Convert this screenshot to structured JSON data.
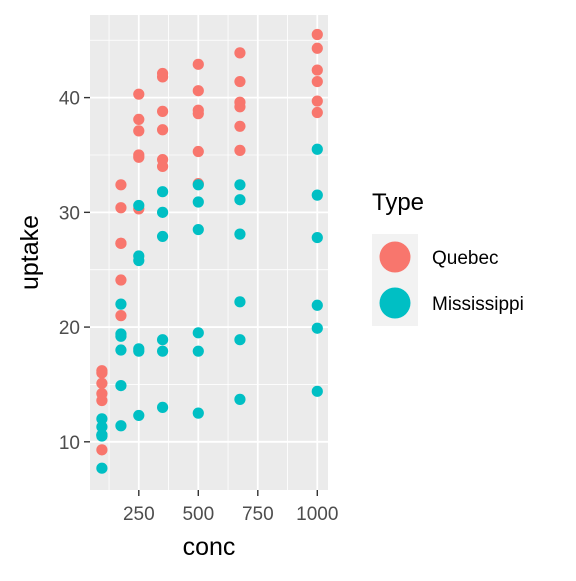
{
  "chart_data": {
    "type": "scatter",
    "title": "",
    "xlabel": "conc",
    "ylabel": "uptake",
    "xlim": [
      45,
      1045
    ],
    "ylim": [
      5.8,
      47.2
    ],
    "x_ticks": [
      250,
      500,
      750,
      1000
    ],
    "x_tick_labels": [
      "250",
      "500",
      "750",
      "1000"
    ],
    "y_ticks": [
      10,
      20,
      30,
      40
    ],
    "y_tick_labels": [
      "10",
      "20",
      "30",
      "40"
    ],
    "grid": true,
    "legend": {
      "title": "Type",
      "position": "right"
    },
    "series": [
      {
        "name": "Quebec",
        "color": "#F8766D",
        "points": [
          [
            95,
            16.0
          ],
          [
            175,
            30.4
          ],
          [
            250,
            34.8
          ],
          [
            350,
            37.2
          ],
          [
            500,
            35.3
          ],
          [
            675,
            39.2
          ],
          [
            1000,
            39.7
          ],
          [
            95,
            13.6
          ],
          [
            175,
            27.3
          ],
          [
            250,
            37.1
          ],
          [
            350,
            41.8
          ],
          [
            500,
            40.6
          ],
          [
            675,
            41.4
          ],
          [
            1000,
            44.3
          ],
          [
            95,
            16.2
          ],
          [
            175,
            32.4
          ],
          [
            250,
            40.3
          ],
          [
            350,
            42.1
          ],
          [
            500,
            42.9
          ],
          [
            675,
            43.9
          ],
          [
            1000,
            45.5
          ],
          [
            95,
            14.2
          ],
          [
            175,
            24.1
          ],
          [
            250,
            30.3
          ],
          [
            350,
            34.6
          ],
          [
            500,
            32.5
          ],
          [
            675,
            35.4
          ],
          [
            1000,
            38.7
          ],
          [
            95,
            9.3
          ],
          [
            175,
            27.3
          ],
          [
            250,
            35.0
          ],
          [
            350,
            38.8
          ],
          [
            500,
            38.6
          ],
          [
            675,
            37.5
          ],
          [
            1000,
            42.4
          ],
          [
            95,
            15.1
          ],
          [
            175,
            21.0
          ],
          [
            250,
            38.1
          ],
          [
            350,
            34.0
          ],
          [
            500,
            38.9
          ],
          [
            675,
            39.6
          ],
          [
            1000,
            41.4
          ]
        ]
      },
      {
        "name": "Mississippi",
        "color": "#00BFC4",
        "points": [
          [
            95,
            10.6
          ],
          [
            175,
            19.2
          ],
          [
            250,
            26.2
          ],
          [
            350,
            30.0
          ],
          [
            500,
            30.9
          ],
          [
            675,
            32.4
          ],
          [
            1000,
            35.5
          ],
          [
            95,
            12.0
          ],
          [
            175,
            22.0
          ],
          [
            250,
            30.6
          ],
          [
            350,
            31.8
          ],
          [
            500,
            32.4
          ],
          [
            675,
            31.1
          ],
          [
            1000,
            31.5
          ],
          [
            95,
            11.3
          ],
          [
            175,
            19.4
          ],
          [
            250,
            25.8
          ],
          [
            350,
            27.9
          ],
          [
            500,
            28.5
          ],
          [
            675,
            28.1
          ],
          [
            1000,
            27.8
          ],
          [
            95,
            10.5
          ],
          [
            175,
            14.9
          ],
          [
            250,
            18.1
          ],
          [
            350,
            18.9
          ],
          [
            500,
            19.5
          ],
          [
            675,
            22.2
          ],
          [
            1000,
            21.9
          ],
          [
            95,
            7.7
          ],
          [
            175,
            11.4
          ],
          [
            250,
            12.3
          ],
          [
            350,
            13.0
          ],
          [
            500,
            12.5
          ],
          [
            675,
            13.7
          ],
          [
            1000,
            14.4
          ],
          [
            95,
            10.6
          ],
          [
            175,
            18.0
          ],
          [
            250,
            17.9
          ],
          [
            350,
            17.9
          ],
          [
            500,
            17.9
          ],
          [
            675,
            18.9
          ],
          [
            1000,
            19.9
          ]
        ]
      }
    ]
  }
}
